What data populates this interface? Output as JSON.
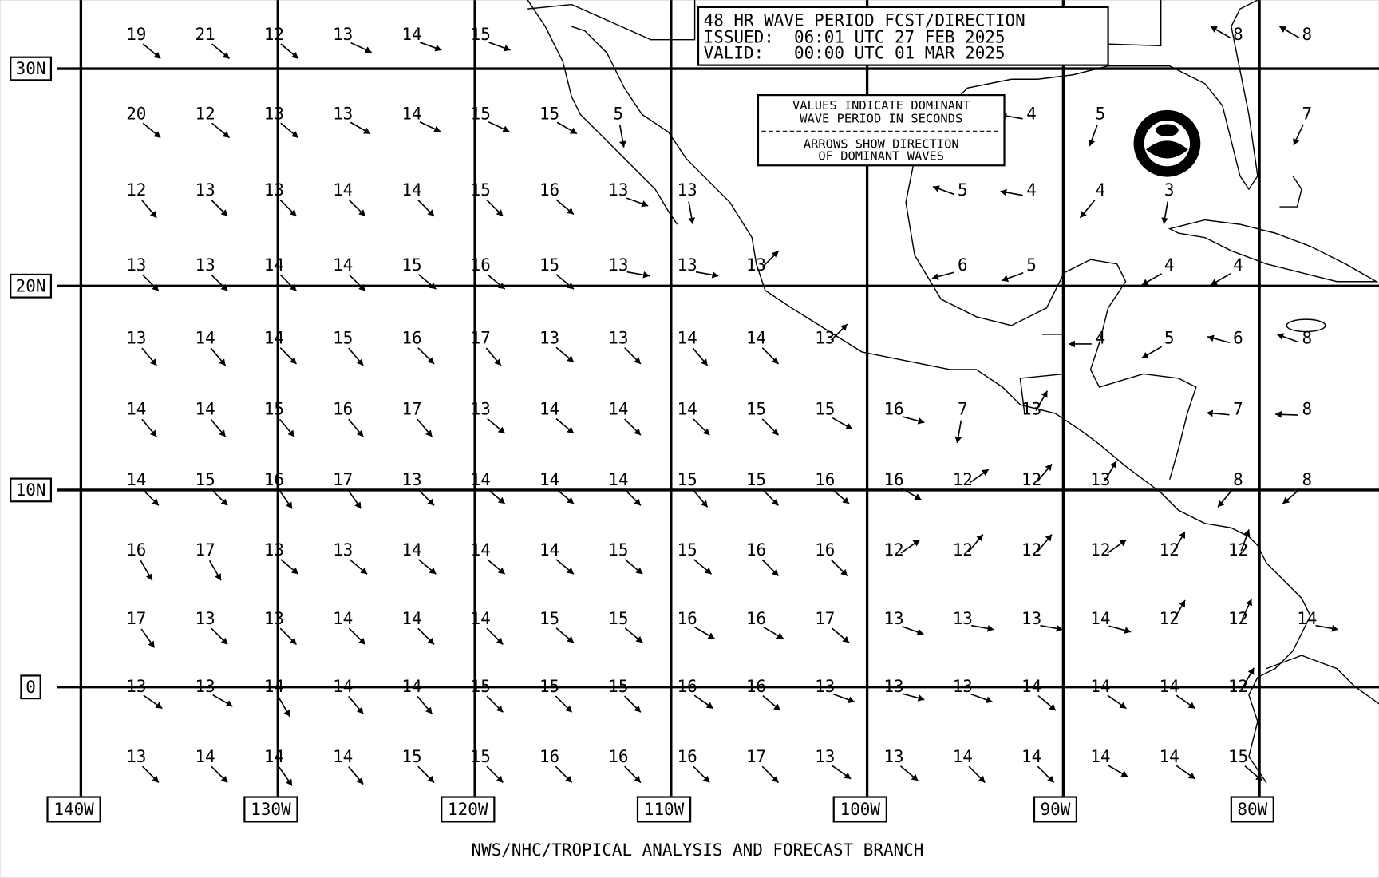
{
  "header": {
    "lines": [
      "48 HR WAVE PERIOD FCST/DIRECTION",
      "ISSUED:  06:01 UTC 27 FEB 2025",
      "VALID:   00:00 UTC 01 MAR 2025"
    ]
  },
  "legend": {
    "lines": [
      "VALUES INDICATE DOMINANT",
      "WAVE PERIOD IN SECONDS",
      "ARROWS SHOW DIRECTION",
      "OF DOMINANT WAVES"
    ]
  },
  "latitude_labels": [
    "30N",
    "20N",
    "10N",
    "0"
  ],
  "longitude_labels": [
    "140W",
    "130W",
    "120W",
    "110W",
    "100W",
    "90W",
    "80W"
  ],
  "footer": "NWS/NHC/TROPICAL ANALYSIS AND FORECAST BRANCH",
  "wave_periods": {
    "rows": [
      [
        19,
        21,
        12,
        13,
        14,
        15,
        null,
        null,
        null,
        null,
        null,
        null,
        null,
        null,
        null,
        null,
        8,
        8
      ],
      [
        20,
        12,
        13,
        13,
        14,
        15,
        15,
        5,
        null,
        null,
        null,
        null,
        null,
        4,
        5,
        null,
        null,
        7
      ],
      [
        12,
        13,
        13,
        14,
        14,
        15,
        16,
        13,
        13,
        null,
        null,
        null,
        5,
        4,
        4,
        3,
        null,
        null
      ],
      [
        13,
        13,
        14,
        14,
        15,
        16,
        15,
        13,
        13,
        13,
        null,
        null,
        6,
        5,
        null,
        4,
        4,
        null
      ],
      [
        13,
        14,
        14,
        15,
        16,
        17,
        13,
        13,
        14,
        14,
        13,
        null,
        null,
        null,
        4,
        5,
        6,
        8
      ],
      [
        14,
        14,
        15,
        16,
        17,
        13,
        14,
        14,
        14,
        15,
        15,
        16,
        7,
        13,
        null,
        null,
        7,
        8
      ],
      [
        14,
        15,
        16,
        17,
        13,
        14,
        14,
        14,
        15,
        15,
        16,
        16,
        12,
        12,
        13,
        null,
        8,
        8
      ],
      [
        16,
        17,
        13,
        13,
        14,
        14,
        14,
        15,
        15,
        16,
        16,
        12,
        12,
        12,
        12,
        12,
        12,
        null
      ],
      [
        17,
        13,
        13,
        14,
        14,
        14,
        15,
        15,
        16,
        16,
        17,
        13,
        13,
        13,
        14,
        12,
        12,
        14
      ],
      [
        13,
        13,
        14,
        14,
        14,
        15,
        15,
        15,
        16,
        16,
        13,
        13,
        13,
        14,
        14,
        14,
        12,
        null
      ],
      [
        13,
        14,
        14,
        14,
        15,
        15,
        16,
        16,
        16,
        17,
        13,
        13,
        14,
        14,
        14,
        14,
        15,
        null
      ]
    ],
    "directions": [
      [
        40,
        40,
        40,
        25,
        20,
        20,
        null,
        null,
        null,
        null,
        null,
        null,
        null,
        null,
        null,
        null,
        -150,
        -150
      ],
      [
        40,
        40,
        40,
        30,
        25,
        25,
        30,
        80,
        null,
        null,
        null,
        null,
        null,
        -170,
        110,
        null,
        null,
        115
      ],
      [
        50,
        45,
        45,
        45,
        45,
        45,
        40,
        20,
        80,
        null,
        null,
        null,
        -160,
        -170,
        130,
        100,
        null,
        null
      ],
      [
        45,
        45,
        45,
        45,
        40,
        40,
        40,
        10,
        10,
        -45,
        null,
        null,
        165,
        160,
        null,
        150,
        150,
        null
      ],
      [
        50,
        50,
        45,
        50,
        45,
        50,
        40,
        45,
        50,
        45,
        -45,
        null,
        null,
        null,
        180,
        150,
        -165,
        -160
      ],
      [
        50,
        50,
        50,
        50,
        50,
        40,
        40,
        45,
        45,
        45,
        30,
        15,
        100,
        -60,
        null,
        null,
        -175,
        -178
      ],
      [
        45,
        45,
        55,
        55,
        45,
        40,
        40,
        45,
        50,
        45,
        40,
        30,
        -35,
        -50,
        -60,
        null,
        130,
        140
      ],
      [
        60,
        60,
        40,
        40,
        40,
        40,
        40,
        40,
        40,
        45,
        45,
        -35,
        -50,
        -50,
        -35,
        -60,
        -70,
        null
      ],
      [
        55,
        45,
        45,
        45,
        45,
        45,
        40,
        40,
        30,
        30,
        40,
        20,
        10,
        10,
        15,
        -60,
        -65,
        10
      ],
      [
        35,
        30,
        60,
        50,
        50,
        45,
        45,
        45,
        35,
        40,
        20,
        15,
        20,
        40,
        35,
        35,
        -60,
        null
      ],
      [
        45,
        45,
        55,
        50,
        45,
        45,
        45,
        45,
        45,
        45,
        35,
        40,
        45,
        45,
        30,
        35,
        40,
        null
      ]
    ]
  }
}
